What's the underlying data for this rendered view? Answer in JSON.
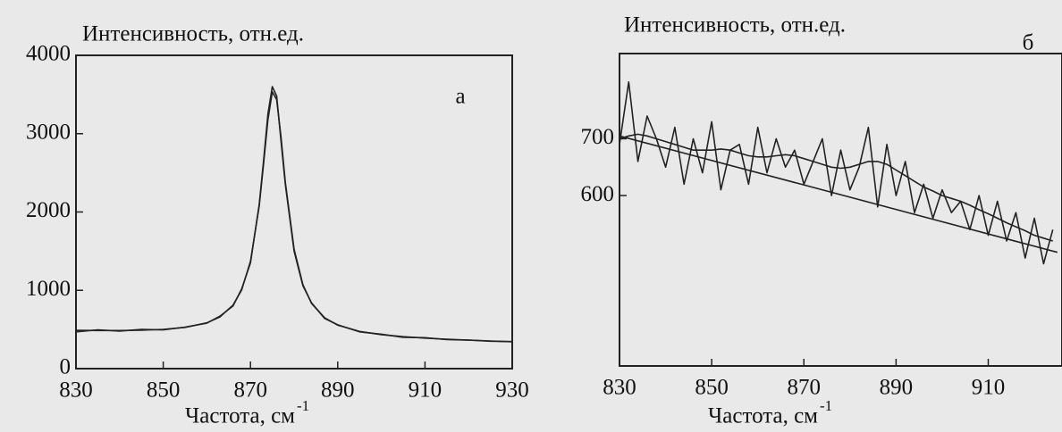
{
  "chart_data": [
    {
      "type": "line",
      "ylabel": "Интенсивность, отн.ед.",
      "xlabel": "Частота, см",
      "xlabel_sup": "-1",
      "annotation": "а",
      "x": [
        830,
        835,
        840,
        845,
        850,
        855,
        860,
        863,
        866,
        868,
        870,
        872,
        873,
        874,
        875,
        876,
        877,
        878,
        880,
        882,
        884,
        887,
        890,
        895,
        900,
        905,
        910,
        915,
        920,
        925,
        930
      ],
      "series": [
        {
          "color": "#222222",
          "values": [
            489,
            487,
            487,
            490,
            501,
            526,
            585,
            660,
            811,
            1006,
            1371,
            2079,
            2610,
            3176,
            3534,
            3435,
            2953,
            2378,
            1525,
            1073,
            833,
            649,
            555,
            475,
            434,
            408,
            390,
            375,
            363,
            353,
            343
          ]
        },
        {
          "color": "#444444",
          "values": [
            470,
            495,
            480,
            500,
            495,
            530,
            580,
            670,
            800,
            1020,
            1350,
            2100,
            2650,
            3250,
            3600,
            3480,
            2900,
            2350,
            1500,
            1060,
            840,
            640,
            560,
            470,
            440,
            400,
            395,
            370,
            365,
            350,
            345
          ]
        }
      ],
      "xlim": [
        830,
        930
      ],
      "xticks": [
        830,
        850,
        870,
        890,
        910,
        930
      ],
      "ylim": [
        0,
        4000
      ],
      "yticks": [
        0,
        1000,
        2000,
        3000,
        4000
      ]
    },
    {
      "type": "line",
      "ylabel": "Интенсивность, отн.ед.",
      "xlabel": "Частота, см",
      "xlabel_sup": "-1",
      "annotation": "б",
      "x": [
        830,
        832,
        834,
        836,
        838,
        840,
        842,
        844,
        846,
        848,
        850,
        852,
        854,
        856,
        858,
        860,
        862,
        864,
        866,
        868,
        870,
        872,
        874,
        876,
        878,
        880,
        882,
        884,
        886,
        888,
        890,
        892,
        894,
        896,
        898,
        900,
        902,
        904,
        906,
        908,
        910,
        912,
        914,
        916,
        918,
        920,
        922,
        924
      ],
      "series": [
        {
          "color": "#222222",
          "values": [
            690,
            800,
            660,
            740,
            700,
            650,
            720,
            620,
            700,
            640,
            730,
            610,
            680,
            690,
            620,
            720,
            640,
            700,
            650,
            680,
            620,
            660,
            700,
            600,
            680,
            610,
            650,
            720,
            580,
            690,
            600,
            660,
            570,
            620,
            560,
            610,
            570,
            590,
            540,
            600,
            530,
            590,
            520,
            570,
            490,
            560,
            480,
            540
          ]
        },
        {
          "color": "#222222",
          "values": [
            700,
            705,
            708,
            705,
            700,
            695,
            690,
            685,
            680,
            680,
            680,
            682,
            680,
            675,
            670,
            668,
            668,
            670,
            672,
            670,
            665,
            660,
            655,
            650,
            648,
            650,
            655,
            660,
            660,
            655,
            645,
            635,
            625,
            615,
            608,
            600,
            595,
            590,
            583,
            575,
            568,
            560,
            552,
            545,
            538,
            530,
            525,
            520
          ]
        },
        {
          "color": "#222222",
          "x": [
            830,
            925
          ],
          "values": [
            705,
            500
          ]
        }
      ],
      "xlim": [
        830,
        926
      ],
      "xticks": [
        830,
        850,
        870,
        890,
        910
      ],
      "ylim": [
        300,
        850
      ],
      "yticks": [
        600,
        700
      ]
    }
  ]
}
